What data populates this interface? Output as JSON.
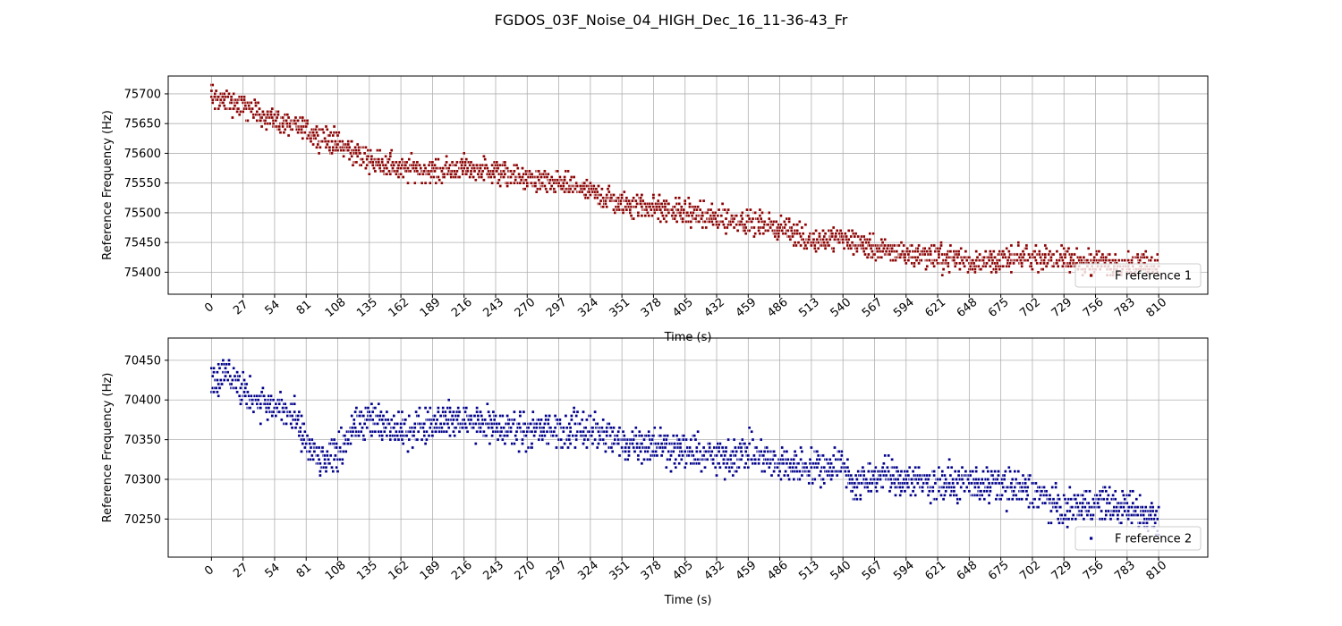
{
  "chart_data": {
    "title": "FGDOS_03F_Noise_04_HIGH_Dec_16_11-36-43_Fr",
    "subplots": [
      {
        "type": "scatter",
        "xlabel": "Time (s)",
        "ylabel": "Reference Frequency (Hz)",
        "xlim": [
          -37,
          852
        ],
        "ylim": [
          75363,
          75730
        ],
        "xticks": [
          0,
          27,
          54,
          81,
          108,
          135,
          162,
          189,
          216,
          243,
          270,
          297,
          324,
          351,
          378,
          405,
          432,
          459,
          486,
          513,
          540,
          567,
          594,
          621,
          648,
          675,
          702,
          729,
          756,
          783,
          810
        ],
        "xtick_labels": [
          "0",
          "27",
          "54",
          "81",
          "108",
          "135",
          "162",
          "189",
          "216",
          "243",
          "270",
          "297",
          "324",
          "351",
          "378",
          "405",
          "432",
          "459",
          "486",
          "513",
          "540",
          "567",
          "594",
          "621",
          "648",
          "675",
          "702",
          "729",
          "756",
          "783",
          "810"
        ],
        "yticks": [
          75400,
          75450,
          75500,
          75550,
          75600,
          75650,
          75700
        ],
        "ytick_labels": [
          "75400",
          "75450",
          "75500",
          "75550",
          "75600",
          "75650",
          "75700"
        ],
        "grid": true,
        "legend": {
          "position": "lower-right",
          "label": "F reference 1"
        },
        "series": [
          {
            "name": "F reference 1",
            "color": "#8b0000",
            "x_range": [
              0,
              810
            ],
            "trend": [
              [
                0,
                75695
              ],
              [
                27,
                75680
              ],
              [
                54,
                75655
              ],
              [
                81,
                75640
              ],
              [
                108,
                75615
              ],
              [
                135,
                75590
              ],
              [
                162,
                75575
              ],
              [
                189,
                75570
              ],
              [
                216,
                75575
              ],
              [
                243,
                75570
              ],
              [
                270,
                75555
              ],
              [
                297,
                75550
              ],
              [
                324,
                75535
              ],
              [
                351,
                75515
              ],
              [
                378,
                75510
              ],
              [
                405,
                75500
              ],
              [
                432,
                75490
              ],
              [
                459,
                75485
              ],
              [
                486,
                75475
              ],
              [
                513,
                75455
              ],
              [
                540,
                75455
              ],
              [
                567,
                75440
              ],
              [
                594,
                75430
              ],
              [
                621,
                75425
              ],
              [
                648,
                75420
              ],
              [
                675,
                75420
              ],
              [
                702,
                75425
              ],
              [
                729,
                75420
              ],
              [
                756,
                75415
              ],
              [
                783,
                75415
              ],
              [
                810,
                75415
              ]
            ],
            "spread": 20
          }
        ]
      },
      {
        "type": "scatter",
        "xlabel": "Time (s)",
        "ylabel": "Reference Frequency (Hz)",
        "xlim": [
          -37,
          852
        ],
        "ylim": [
          70202,
          70478
        ],
        "xticks": [
          0,
          27,
          54,
          81,
          108,
          135,
          162,
          189,
          216,
          243,
          270,
          297,
          324,
          351,
          378,
          405,
          432,
          459,
          486,
          513,
          540,
          567,
          594,
          621,
          648,
          675,
          702,
          729,
          756,
          783,
          810
        ],
        "xtick_labels": [
          "0",
          "27",
          "54",
          "81",
          "108",
          "135",
          "162",
          "189",
          "216",
          "243",
          "270",
          "297",
          "324",
          "351",
          "378",
          "405",
          "432",
          "459",
          "486",
          "513",
          "540",
          "567",
          "594",
          "621",
          "648",
          "675",
          "702",
          "729",
          "756",
          "783",
          "810"
        ],
        "yticks": [
          70250,
          70300,
          70350,
          70400,
          70450
        ],
        "ytick_labels": [
          "70250",
          "70300",
          "70350",
          "70400",
          "70450"
        ],
        "grid": true,
        "legend": {
          "position": "lower-right",
          "label": "F reference 2"
        },
        "series": [
          {
            "name": "F reference 2",
            "color": "#00008b",
            "x_range": [
              0,
              810
            ],
            "trend": [
              [
                0,
                70425
              ],
              [
                13,
                70435
              ],
              [
                27,
                70410
              ],
              [
                54,
                70390
              ],
              [
                70,
                70380
              ],
              [
                81,
                70345
              ],
              [
                95,
                70320
              ],
              [
                108,
                70335
              ],
              [
                120,
                70365
              ],
              [
                135,
                70375
              ],
              [
                162,
                70360
              ],
              [
                189,
                70375
              ],
              [
                216,
                70375
              ],
              [
                243,
                70365
              ],
              [
                270,
                70365
              ],
              [
                297,
                70360
              ],
              [
                324,
                70365
              ],
              [
                351,
                70345
              ],
              [
                378,
                70345
              ],
              [
                405,
                70335
              ],
              [
                432,
                70325
              ],
              [
                459,
                70335
              ],
              [
                486,
                70320
              ],
              [
                513,
                70315
              ],
              [
                540,
                70320
              ],
              [
                550,
                70290
              ],
              [
                567,
                70305
              ],
              [
                594,
                70300
              ],
              [
                621,
                70295
              ],
              [
                648,
                70295
              ],
              [
                675,
                70290
              ],
              [
                702,
                70285
              ],
              [
                729,
                70260
              ],
              [
                756,
                70270
              ],
              [
                783,
                70265
              ],
              [
                810,
                70250
              ]
            ],
            "spread": 22
          }
        ]
      }
    ]
  }
}
